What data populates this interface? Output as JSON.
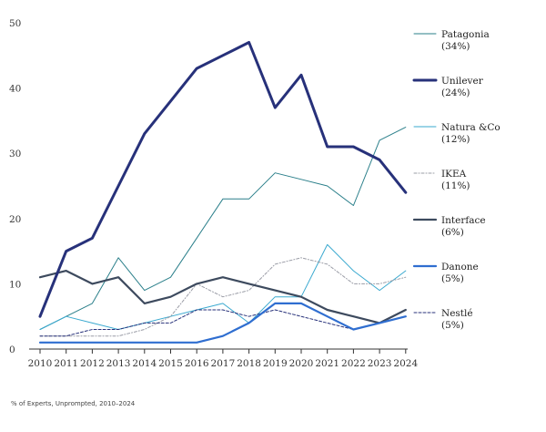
{
  "chart_data": {
    "type": "line",
    "title": "",
    "xlabel": "",
    "ylabel": "",
    "x": [
      2010,
      2011,
      2012,
      2013,
      2014,
      2015,
      2016,
      2017,
      2018,
      2019,
      2020,
      2021,
      2022,
      2023,
      2024
    ],
    "ylim": [
      0,
      50
    ],
    "yticks": [
      0,
      10,
      20,
      30,
      40,
      50
    ],
    "grid": false,
    "legend_position": "right",
    "series": [
      {
        "name": "Patagonia",
        "share": "(34%)",
        "color": "#2a7f8a",
        "style": "solid",
        "weight": "thin",
        "values": [
          3,
          5,
          7,
          14,
          9,
          11,
          17,
          23,
          23,
          27,
          26,
          25,
          22,
          32,
          34
        ]
      },
      {
        "name": "Unilever",
        "share": "(24%)",
        "color": "#27317a",
        "style": "solid",
        "weight": "thick",
        "values": [
          5,
          15,
          17,
          25,
          33,
          38,
          43,
          45,
          47,
          37,
          42,
          31,
          31,
          29,
          24
        ]
      },
      {
        "name": "Natura &Co",
        "share": "(12%)",
        "color": "#3aa9cf",
        "style": "solid",
        "weight": "thin",
        "values": [
          3,
          5,
          4,
          3,
          4,
          5,
          6,
          7,
          4,
          8,
          8,
          16,
          12,
          9,
          12
        ]
      },
      {
        "name": "IKEA",
        "share": "(11%)",
        "color": "#9a9ca6",
        "style": "dashdot",
        "weight": "thin",
        "values": [
          2,
          2,
          2,
          2,
          3,
          5,
          10,
          8,
          9,
          13,
          14,
          13,
          10,
          10,
          11
        ]
      },
      {
        "name": "Interface",
        "share": "(6%)",
        "color": "#3d4a5e",
        "style": "solid",
        "weight": "medium",
        "values": [
          11,
          12,
          10,
          11,
          7,
          8,
          10,
          11,
          10,
          9,
          8,
          6,
          5,
          4,
          6
        ]
      },
      {
        "name": "Danone",
        "share": "(5%)",
        "color": "#2f6ed0",
        "style": "solid",
        "weight": "medium",
        "values": [
          1,
          1,
          1,
          1,
          1,
          1,
          1,
          2,
          4,
          7,
          7,
          5,
          3,
          4,
          5
        ]
      },
      {
        "name": "Nestlé",
        "share": "(5%)",
        "color": "#27317a",
        "style": "dashed",
        "weight": "thin",
        "values": [
          2,
          2,
          3,
          3,
          4,
          4,
          6,
          6,
          5,
          6,
          5,
          4,
          3,
          4,
          5
        ]
      }
    ],
    "footnote": "% of Experts, Unprompted, 2010–2024"
  }
}
